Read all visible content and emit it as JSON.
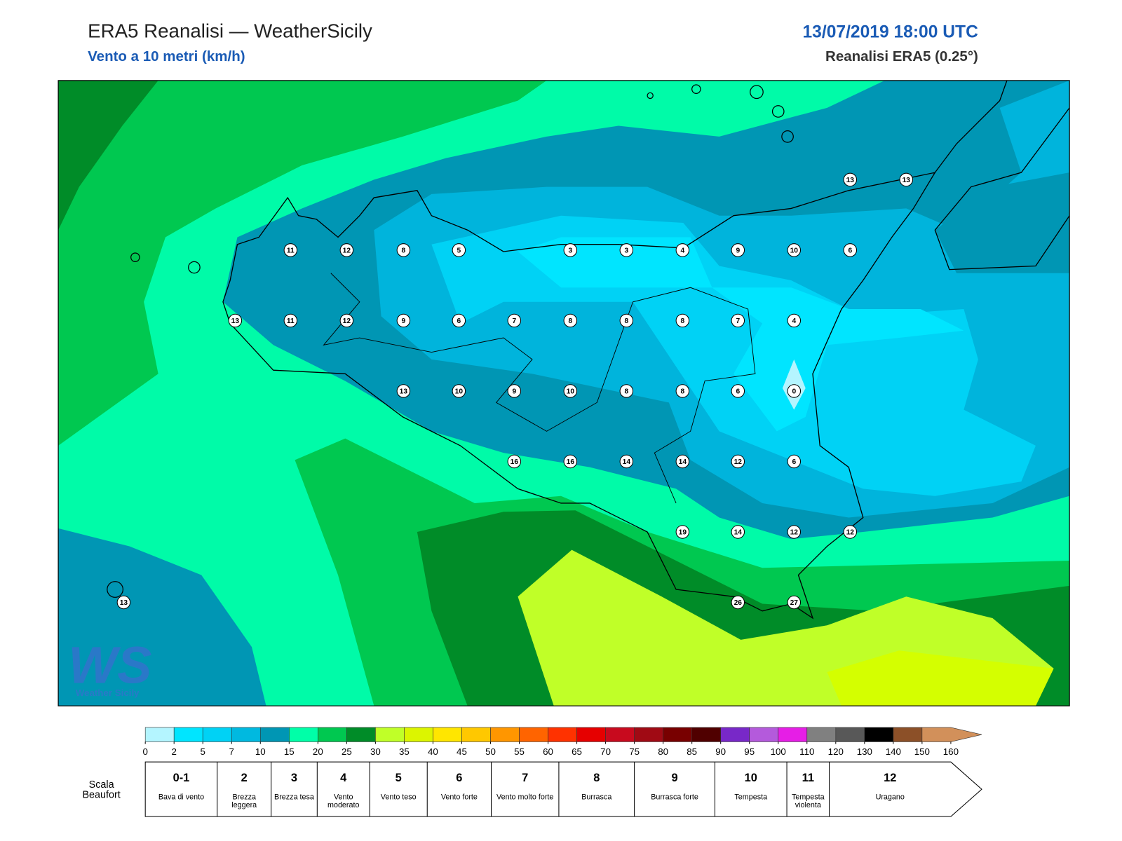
{
  "header": {
    "title": "ERA5 Reanalisi — WeatherSicily",
    "subtitle": "Vento a 10 metri (km/h)",
    "datetime": "13/07/2019 18:00 UTC",
    "source": "Reanalisi ERA5 (0.25°)"
  },
  "stations": [
    11,
    12,
    8,
    5,
    3,
    3,
    4,
    9,
    10,
    6,
    13,
    11,
    12,
    9,
    6,
    7,
    8,
    8,
    8,
    7,
    4,
    13,
    10,
    9,
    10,
    8,
    8,
    6,
    0,
    16,
    16,
    14,
    14,
    12,
    6,
    19,
    14,
    12,
    12,
    26,
    27,
    13,
    13,
    13
  ],
  "colorbar": {
    "ticks": [
      0,
      2,
      5,
      7,
      10,
      15,
      20,
      25,
      30,
      35,
      40,
      45,
      50,
      55,
      60,
      65,
      70,
      75,
      80,
      85,
      90,
      95,
      100,
      110,
      120,
      130,
      140,
      150,
      160
    ],
    "colors": [
      "#b4f5ff",
      "#00e5ff",
      "#00d2f5",
      "#00b9e0",
      "#0096b4",
      "#00ffa8",
      "#00c850",
      "#008c28",
      "#c0ff28",
      "#dcf500",
      "#ffe600",
      "#ffc800",
      "#ff9600",
      "#ff6400",
      "#ff3200",
      "#e60000",
      "#c80a1e",
      "#a00a14",
      "#780000",
      "#500000",
      "#7828c8",
      "#b45adc",
      "#e61ee6",
      "#808080",
      "#585858",
      "#000000",
      "#8c5028",
      "#d2905a"
    ]
  },
  "beaufort": {
    "title": "Scala Beaufort",
    "levels": [
      {
        "force": "0-1",
        "label": "Bava di vento"
      },
      {
        "force": "2",
        "label": "Brezza leggera"
      },
      {
        "force": "3",
        "label": "Brezza tesa"
      },
      {
        "force": "4",
        "label": "Vento moderato"
      },
      {
        "force": "5",
        "label": "Vento teso"
      },
      {
        "force": "6",
        "label": "Vento forte"
      },
      {
        "force": "7",
        "label": "Vento molto forte"
      },
      {
        "force": "8",
        "label": "Burrasca"
      },
      {
        "force": "9",
        "label": "Burrasca forte"
      },
      {
        "force": "10",
        "label": "Tempesta"
      },
      {
        "force": "11",
        "label": "Tempesta violenta"
      },
      {
        "force": "12",
        "label": "Uragano"
      }
    ]
  },
  "logo": {
    "mark": "WS",
    "text": "Weather Sicily"
  }
}
